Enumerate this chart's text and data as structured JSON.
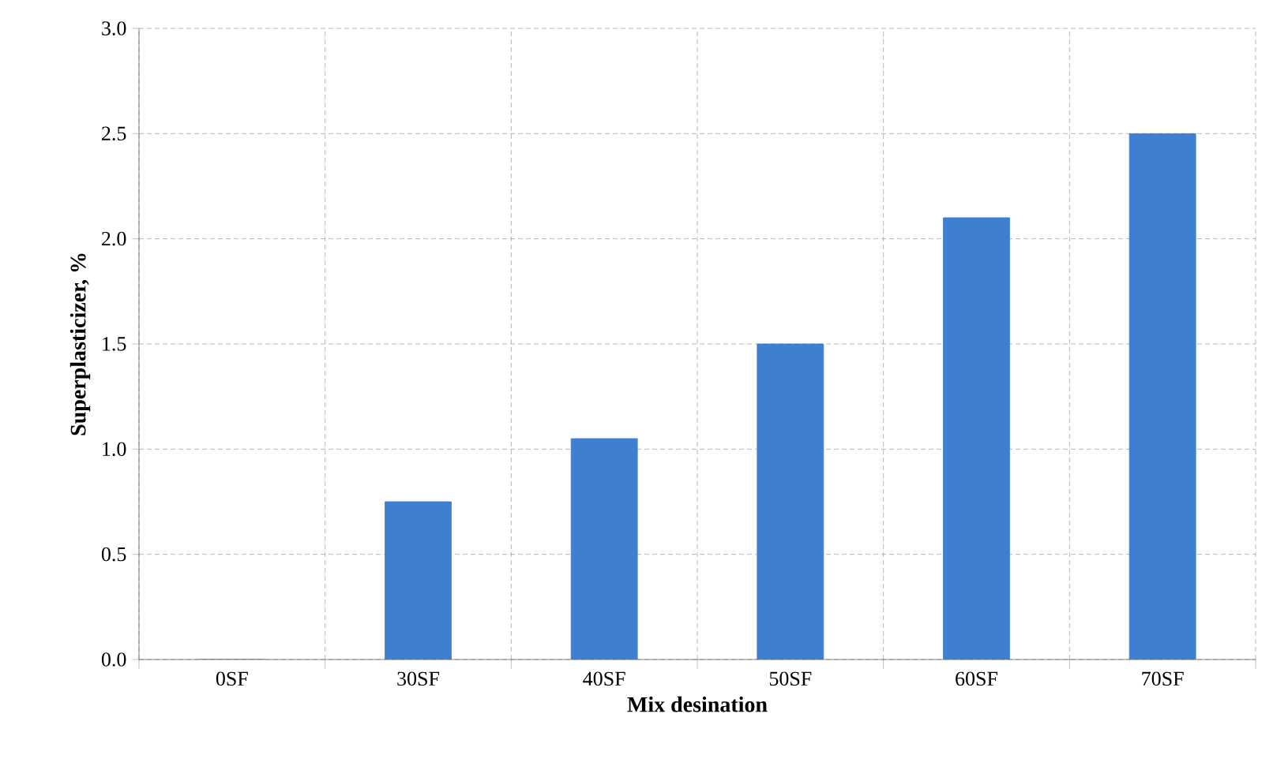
{
  "chart_data": {
    "type": "bar",
    "xlabel": "Mix desination",
    "ylabel": "Superplasticizer, %",
    "categories": [
      "0SF",
      "30SF",
      "40SF",
      "50SF",
      "60SF",
      "70SF"
    ],
    "values": [
      0,
      0.75,
      1.05,
      1.5,
      2.1,
      2.5
    ],
    "color": "#3f7fcf",
    "ylim": [
      0,
      3
    ],
    "yticks": [
      {
        "value": 0,
        "label": "0.0"
      },
      {
        "value": 0.5,
        "label": "0.5"
      },
      {
        "value": 1,
        "label": "1.0"
      },
      {
        "value": 1.5,
        "label": "1.5"
      },
      {
        "value": 2,
        "label": "2.0"
      },
      {
        "value": 2.5,
        "label": "2.5"
      },
      {
        "value": 3,
        "label": "3.0"
      }
    ],
    "grid": true
  }
}
